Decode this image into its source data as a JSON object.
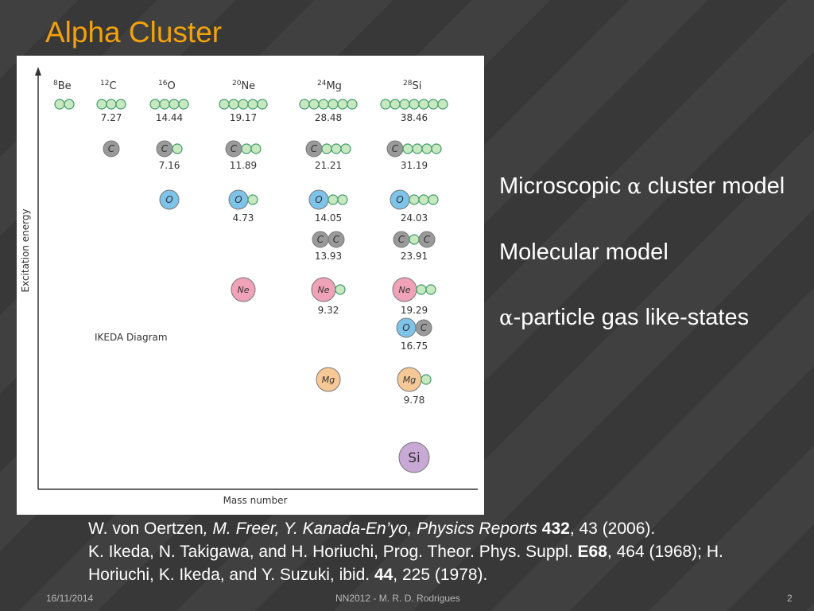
{
  "slide": {
    "title": "Alpha Cluster",
    "bullets": [
      {
        "symbol": "α",
        "pre": "Microscopic ",
        "post": " cluster model"
      },
      {
        "symbol": "",
        "pre": "Molecular model",
        "post": ""
      },
      {
        "symbol": "α",
        "pre": "",
        "post": "-particle gas like-states"
      }
    ],
    "references": {
      "line1": {
        "author": "W. von Oertzen",
        "coauthors": ", M. Freer, Y. Kanada-En’yo, Physics Reports",
        "volume": "432",
        "rest": ", 43 (2006)."
      },
      "line2": {
        "a": "K. Ikeda, N. Takigawa, and H. Horiuchi, Prog. Theor. Phys. Suppl. ",
        "vol1": "E68",
        "b": ", 464 (1968); H. Horiuchi, K. Ikeda, and Y. Suzuki, ibid. ",
        "vol2": "44",
        "c": ", 225 (1978)."
      }
    },
    "footer": {
      "date": "16/11/2014",
      "center": "NN2012 - M. R. D. Rodrigues",
      "page": "2"
    }
  },
  "diagram": {
    "ylabel": "Excitation energy",
    "xlabel": "Mass number",
    "caption": "IKEDA Diagram",
    "colors": {
      "alpha": "#c8e8c0",
      "alpha_stroke": "#3f9a6a",
      "C": "#9a9a9a",
      "O": "#7ec3ea",
      "Ne": "#f0a2b8",
      "Mg": "#f5c896",
      "Si": "#c8a8d4"
    },
    "columns": [
      {
        "mass": "8",
        "sym": "Be"
      },
      {
        "mass": "12",
        "sym": "C"
      },
      {
        "mass": "16",
        "sym": "O"
      },
      {
        "mass": "20",
        "sym": "Ne"
      },
      {
        "mass": "24",
        "sym": "Mg"
      },
      {
        "mass": "28",
        "sym": "Si"
      }
    ],
    "configs": [
      {
        "col": 0,
        "row": 0,
        "core": "",
        "alphas": 2,
        "energy": ""
      },
      {
        "col": 1,
        "row": 0,
        "core": "",
        "alphas": 3,
        "energy": "7.27"
      },
      {
        "col": 2,
        "row": 0,
        "core": "",
        "alphas": 4,
        "energy": "14.44"
      },
      {
        "col": 3,
        "row": 0,
        "core": "",
        "alphas": 5,
        "energy": "19.17"
      },
      {
        "col": 4,
        "row": 0,
        "core": "",
        "alphas": 6,
        "energy": "28.48"
      },
      {
        "col": 5,
        "row": 0,
        "core": "",
        "alphas": 7,
        "energy": "38.46"
      },
      {
        "col": 1,
        "row": 1,
        "core": "C",
        "alphas": 0,
        "energy": ""
      },
      {
        "col": 2,
        "row": 1,
        "core": "C",
        "alphas": 1,
        "energy": "7.16"
      },
      {
        "col": 3,
        "row": 1,
        "core": "C",
        "alphas": 2,
        "energy": "11.89"
      },
      {
        "col": 4,
        "row": 1,
        "core": "C",
        "alphas": 3,
        "energy": "21.21"
      },
      {
        "col": 5,
        "row": 1,
        "core": "C",
        "alphas": 4,
        "energy": "31.19"
      },
      {
        "col": 2,
        "row": 2,
        "core": "O",
        "alphas": 0,
        "energy": ""
      },
      {
        "col": 3,
        "row": 2,
        "core": "O",
        "alphas": 1,
        "energy": "4.73"
      },
      {
        "col": 4,
        "row": 2,
        "core": "O",
        "alphas": 2,
        "energy": "14.05"
      },
      {
        "col": 5,
        "row": 2,
        "core": "O",
        "alphas": 3,
        "energy": "24.03"
      },
      {
        "col": 4,
        "row": 3,
        "core": "CC",
        "alphas": 0,
        "energy": "13.93"
      },
      {
        "col": 5,
        "row": 3,
        "core": "CaC",
        "alphas": 0,
        "energy": "23.91"
      },
      {
        "col": 3,
        "row": 4,
        "core": "Ne",
        "alphas": 0,
        "energy": ""
      },
      {
        "col": 4,
        "row": 4,
        "core": "Ne",
        "alphas": 1,
        "energy": "9.32"
      },
      {
        "col": 5,
        "row": 4,
        "core": "Ne",
        "alphas": 2,
        "energy": "19.29"
      },
      {
        "col": 5,
        "row": 5,
        "core": "OC",
        "alphas": 0,
        "energy": "16.75"
      },
      {
        "col": 4,
        "row": 6,
        "core": "Mg",
        "alphas": 0,
        "energy": ""
      },
      {
        "col": 5,
        "row": 6,
        "core": "Mg",
        "alphas": 1,
        "energy": "9.78"
      },
      {
        "col": 5,
        "row": 7,
        "core": "Si",
        "alphas": 0,
        "energy": ""
      }
    ]
  }
}
